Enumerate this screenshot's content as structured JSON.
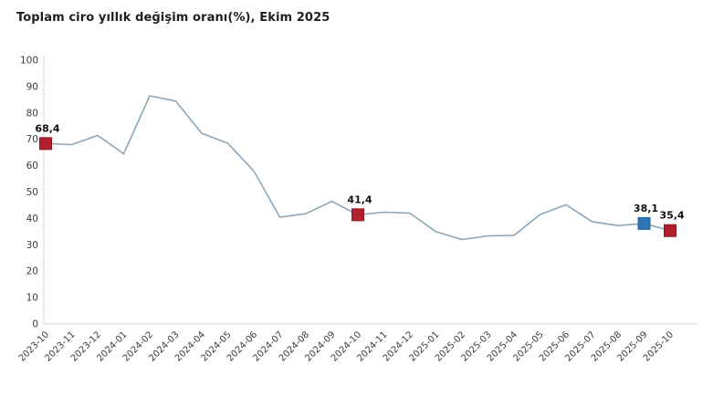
{
  "title": "Toplam ciro yıllık değişim oranı(%), Ekim 2025",
  "chart_data": {
    "type": "line",
    "title": "Toplam ciro yıllık değişim oranı(%), Ekim 2025",
    "xlabel": "",
    "ylabel": "",
    "ylim": [
      0,
      100
    ],
    "y_ticks": [
      0,
      10,
      20,
      30,
      40,
      50,
      60,
      70,
      80,
      90,
      100
    ],
    "grid": false,
    "legend": false,
    "line_color": "#8ba6b8",
    "axis_color": "#d4d4d4",
    "categories": [
      "2023-10",
      "2023-11",
      "2023-12",
      "2024-01",
      "2024-02",
      "2024-03",
      "2024-04",
      "2024-05",
      "2024-06",
      "2024-07",
      "2024-08",
      "2024-09",
      "2024-10",
      "2024-11",
      "2024-12",
      "2025-01",
      "2025-02",
      "2025-03",
      "2025-04",
      "2025-05",
      "2025-06",
      "2025-07",
      "2025-08",
      "2025-09",
      "2025-10"
    ],
    "values": [
      68.4,
      68.0,
      71.5,
      64.5,
      86.5,
      84.5,
      72.3,
      68.5,
      58.0,
      40.5,
      41.8,
      46.5,
      41.4,
      42.4,
      42.0,
      35.0,
      32.0,
      33.4,
      33.6,
      41.5,
      45.2,
      38.8,
      37.3,
      38.1,
      35.4
    ],
    "highlight_points": [
      {
        "category": "2023-10",
        "value": 68.4,
        "label": "68,4",
        "color": "#b21f2d",
        "border": "#8e1823"
      },
      {
        "category": "2024-10",
        "value": 41.4,
        "label": "41,4",
        "color": "#b21f2d",
        "border": "#8e1823"
      },
      {
        "category": "2025-09",
        "value": 38.1,
        "label": "38,1",
        "color": "#2e75b6",
        "border": "#2566a0"
      },
      {
        "category": "2025-10",
        "value": 35.4,
        "label": "35,4",
        "color": "#b21f2d",
        "border": "#8e1823"
      }
    ]
  }
}
